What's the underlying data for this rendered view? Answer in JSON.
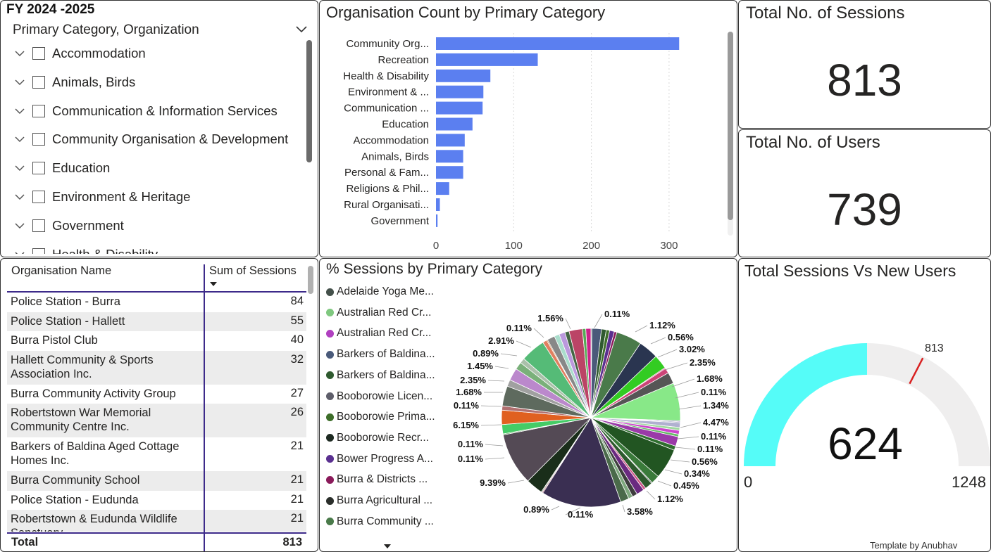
{
  "slicer": {
    "fy_label": "FY 2024 -2025",
    "header": "Primary Category, Organization",
    "items": [
      {
        "label": "Accommodation"
      },
      {
        "label": "Animals, Birds"
      },
      {
        "label": "Communication & Information Services"
      },
      {
        "label": "Community Organisation & Development"
      },
      {
        "label": "Education"
      },
      {
        "label": "Environment & Heritage"
      },
      {
        "label": "Government"
      },
      {
        "label": "Health & Disability"
      }
    ]
  },
  "bar_chart": {
    "title": "Organisation Count by Primary Category",
    "bar_color": "#5b7ff0",
    "categories": [
      "Community Org...",
      "Recreation",
      "Health & Disability",
      "Environment & ...",
      "Communication ...",
      "Education",
      "Accommodation",
      "Animals, Birds",
      "Personal & Fam...",
      "Religions & Phil...",
      "Rural Organisati...",
      "Government"
    ],
    "values": [
      313,
      131,
      70,
      61,
      60,
      47,
      37,
      35,
      35,
      17,
      5,
      2
    ],
    "xticks": [
      "0",
      "100",
      "200",
      "300"
    ],
    "xlim": [
      0,
      330
    ]
  },
  "kpis": {
    "sessions_title": "Total No. of Sessions",
    "sessions_value": "813",
    "users_title": "Total No. of Users",
    "users_value": "739"
  },
  "table": {
    "col1": "Organisation Name",
    "col2": "Sum of Sessions",
    "rows": [
      {
        "name": "Police Station - Burra",
        "value": "84"
      },
      {
        "name": "Police Station - Hallett",
        "value": "55"
      },
      {
        "name": "Burra Pistol Club",
        "value": "40"
      },
      {
        "name": "Hallett Community & Sports Association Inc.",
        "value": "32"
      },
      {
        "name": "Burra Community Activity Group",
        "value": "27"
      },
      {
        "name": "Robertstown War Memorial Community Centre Inc.",
        "value": "26"
      },
      {
        "name": "Barkers of Baldina Aged Cottage Homes Inc.",
        "value": "21"
      },
      {
        "name": "Burra Community School",
        "value": "21"
      },
      {
        "name": "Police Station - Eudunda",
        "value": "21"
      },
      {
        "name": "Robertstown & Eudunda Wildlife Sanctuary",
        "value": "21"
      }
    ],
    "total_label": "Total",
    "total_value": "813"
  },
  "pie": {
    "title": "% Sessions by Primary Category",
    "legend": [
      {
        "label": "Adelaide Yoga Me...",
        "color": "#44504a"
      },
      {
        "label": "Australian Red Cr...",
        "color": "#7fc87f"
      },
      {
        "label": "Australian Red Cr...",
        "color": "#b040c0"
      },
      {
        "label": "Barkers of Baldina...",
        "color": "#4a5a7a"
      },
      {
        "label": "Barkers of Baldina...",
        "color": "#2f5a2f"
      },
      {
        "label": "Booborowie Licen...",
        "color": "#5e5e6a"
      },
      {
        "label": "Booborowie Prima...",
        "color": "#3e6e2a"
      },
      {
        "label": "Booborowie Recr...",
        "color": "#1e2a22"
      },
      {
        "label": "Bower Progress A...",
        "color": "#5a3090"
      },
      {
        "label": "Burra & Districts ...",
        "color": "#8a1a5a"
      },
      {
        "label": "Burra Agricultural ...",
        "color": "#2a2e2a"
      },
      {
        "label": "Burra Community ...",
        "color": "#4a7a4a"
      }
    ],
    "labels": [
      {
        "text": "0.11%"
      },
      {
        "text": "1.12%"
      },
      {
        "text": "0.56%"
      },
      {
        "text": "3.02%"
      },
      {
        "text": "2.35%"
      },
      {
        "text": "1.68%"
      },
      {
        "text": "0.11%"
      },
      {
        "text": "1.34%"
      },
      {
        "text": "4.47%"
      },
      {
        "text": "0.11%"
      },
      {
        "text": "0.11%"
      },
      {
        "text": "0.56%"
      },
      {
        "text": "0.34%"
      },
      {
        "text": "0.45%"
      },
      {
        "text": "1.12%"
      },
      {
        "text": "3.58%"
      },
      {
        "text": "0.11%"
      },
      {
        "text": "0.89%"
      },
      {
        "text": "9.39%"
      },
      {
        "text": "0.11%"
      },
      {
        "text": "0.11%"
      },
      {
        "text": "6.15%"
      },
      {
        "text": "0.11%"
      },
      {
        "text": "1.68%"
      },
      {
        "text": "2.35%"
      },
      {
        "text": "1.45%"
      },
      {
        "text": "0.89%"
      },
      {
        "text": "2.91%"
      },
      {
        "text": "0.11%"
      },
      {
        "text": "1.56%"
      }
    ]
  },
  "gauge": {
    "title": "Total Sessions Vs New Users",
    "value": 624,
    "value_label": "624",
    "min": 0,
    "min_label": "0",
    "max": 1248,
    "max_label": "1248",
    "target": 813,
    "target_label": "813",
    "fill_color": "#55fcf8",
    "track_color": "#efeeee",
    "target_color": "#d92020",
    "credit": "Template by Anubhav"
  }
}
